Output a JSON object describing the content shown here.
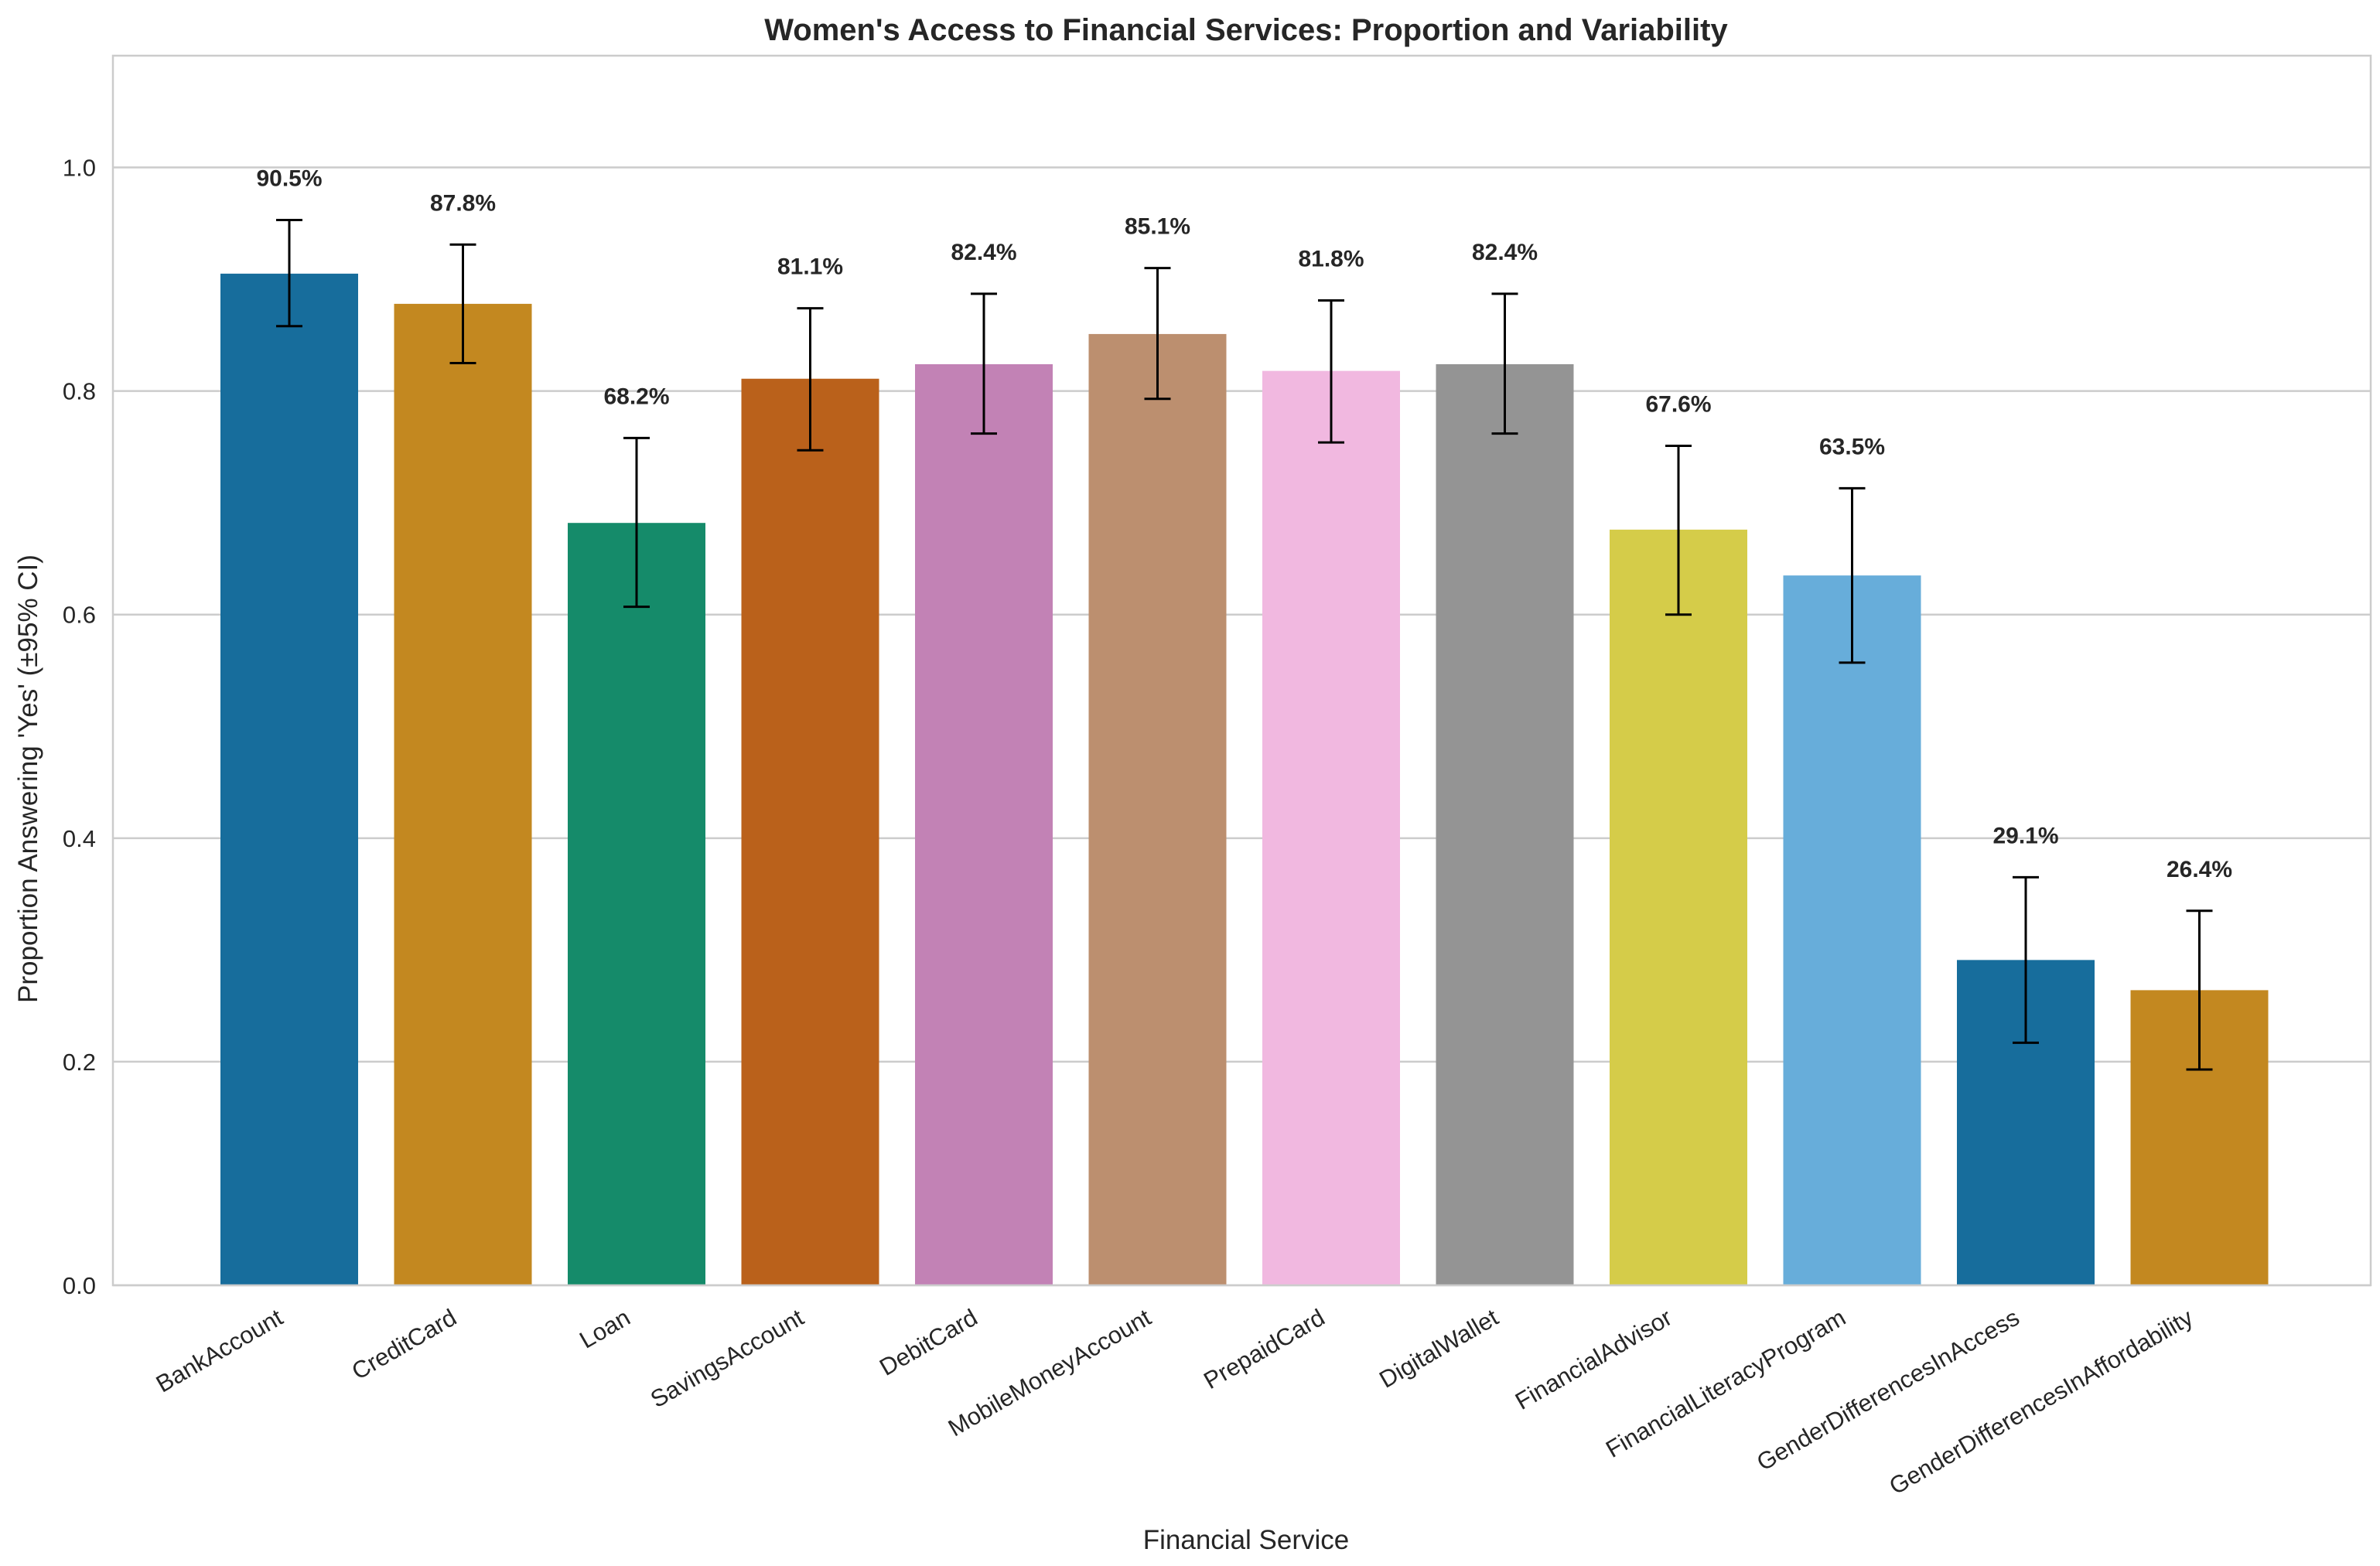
{
  "chart_data": {
    "type": "bar",
    "title": "Women's Access to Financial Services: Proportion and Variability",
    "xlabel": "Financial Service",
    "ylabel": "Proportion Answering 'Yes' (±95% CI)",
    "ylim": [
      0,
      1.1
    ],
    "yticks": [
      0.0,
      0.2,
      0.4,
      0.6,
      0.8,
      1.0
    ],
    "ytick_labels": [
      "0.0",
      "0.2",
      "0.4",
      "0.6",
      "0.8",
      "1.0"
    ],
    "grid": true,
    "categories": [
      "BankAccount",
      "CreditCard",
      "Loan",
      "SavingsAccount",
      "DebitCard",
      "MobileMoneyAccount",
      "PrepaidCard",
      "DigitalWallet",
      "FinancialAdvisor",
      "FinancialLiteracyProgram",
      "GenderDifferencesInAccess",
      "GenderDifferencesInAffordability"
    ],
    "values": [
      0.905,
      0.878,
      0.682,
      0.811,
      0.824,
      0.851,
      0.818,
      0.824,
      0.676,
      0.635,
      0.291,
      0.264
    ],
    "ci_lower": [
      0.858,
      0.825,
      0.607,
      0.747,
      0.762,
      0.793,
      0.754,
      0.762,
      0.6,
      0.557,
      0.217,
      0.193
    ],
    "ci_upper": [
      0.953,
      0.931,
      0.758,
      0.874,
      0.887,
      0.91,
      0.881,
      0.887,
      0.751,
      0.713,
      0.365,
      0.335
    ],
    "data_labels": [
      "90.5%",
      "87.8%",
      "68.2%",
      "81.1%",
      "82.4%",
      "85.1%",
      "81.8%",
      "82.4%",
      "67.6%",
      "63.5%",
      "29.1%",
      "26.4%"
    ],
    "colors": [
      "#176d9c",
      "#c38820",
      "#158b6a",
      "#ba611b",
      "#c282b5",
      "#bc8f6f",
      "#f1b8e0",
      "#949494",
      "#d5cc49",
      "#67adda",
      "#176d9c",
      "#c38820"
    ]
  }
}
